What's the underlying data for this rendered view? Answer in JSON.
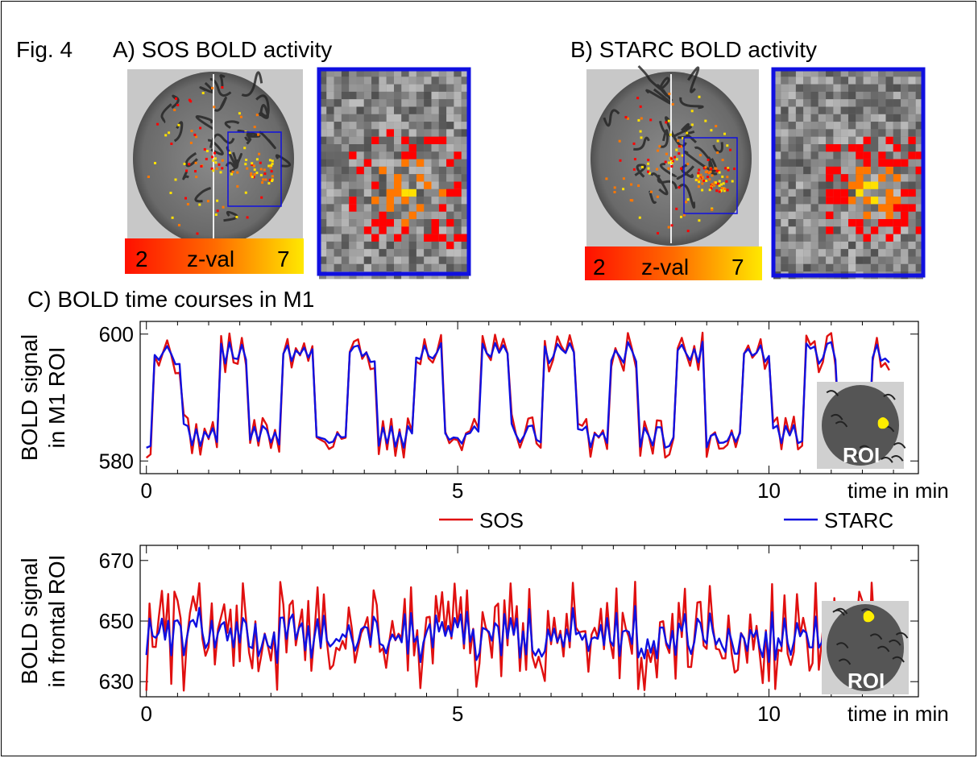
{
  "figure": {
    "fig_label": "Fig. 4",
    "panel_a_title": "A) SOS BOLD activity",
    "panel_b_title": "B) STARC BOLD activity",
    "panel_c_title": "C) BOLD time courses in M1",
    "colorbar": {
      "min_label": "2",
      "mid_label": "z-val",
      "max_label": "7",
      "colors": [
        "#ff0000",
        "#ff7700",
        "#ffe000"
      ]
    },
    "roi_label": "ROI",
    "zoom_box_color": "#1010e0"
  },
  "chart_data": [
    {
      "type": "line",
      "ylabel_line1": "BOLD signal",
      "ylabel_line2": "in M1 ROI",
      "xlabel": "time in min",
      "x_ticks": [
        0,
        5,
        10
      ],
      "y_ticks": [
        580,
        600
      ],
      "xlim": [
        -0.1,
        12.4
      ],
      "ylim": [
        578,
        602
      ],
      "legend": [
        "SOS",
        "STARC"
      ],
      "colors": {
        "SOS": "#e01010",
        "STARC": "#1010e0"
      },
      "block_period_min": 1.05,
      "on_level": 597,
      "off_level": 584,
      "description": "block-design motor task, alternating on/off every ~0.5 min"
    },
    {
      "type": "line",
      "ylabel_line1": "BOLD signal",
      "ylabel_line2": "in frontal ROI",
      "xlabel": "time in min",
      "x_ticks": [
        0,
        5,
        10
      ],
      "y_ticks": [
        630,
        650,
        670
      ],
      "xlim": [
        -0.1,
        12.4
      ],
      "ylim": [
        625,
        675
      ],
      "series": [
        {
          "name": "SOS",
          "mean": 645,
          "spread": 10
        },
        {
          "name": "STARC",
          "mean": 645,
          "spread": 6
        }
      ],
      "colors": {
        "SOS": "#e01010",
        "STARC": "#1010e0"
      }
    }
  ]
}
